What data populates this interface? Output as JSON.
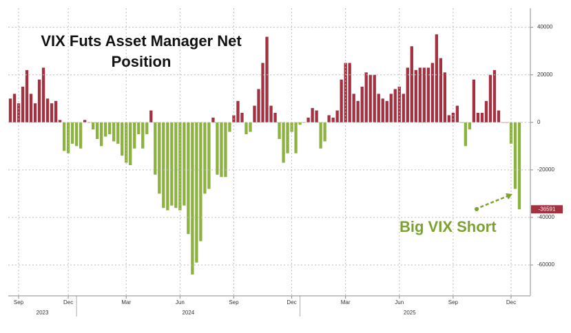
{
  "chart_data": {
    "type": "bar",
    "title": "VIX Futs Asset Manager Net Position",
    "annotation": "Big VIX Short",
    "categories": [
      null,
      null,
      "Sep",
      null,
      null,
      null,
      null,
      null,
      null,
      null,
      null,
      null,
      null,
      null,
      "Dec",
      null,
      null,
      null,
      null,
      null,
      null,
      null,
      null,
      null,
      null,
      null,
      null,
      null,
      "Mar",
      null,
      null,
      null,
      null,
      null,
      null,
      null,
      null,
      null,
      null,
      null,
      null,
      "Jun",
      null,
      null,
      null,
      null,
      null,
      null,
      null,
      null,
      null,
      null,
      null,
      null,
      "Sep",
      null,
      null,
      null,
      null,
      null,
      null,
      null,
      null,
      null,
      null,
      null,
      null,
      null,
      "Dec",
      null,
      null,
      null,
      null,
      null,
      null,
      null,
      null,
      null,
      null,
      null,
      null,
      "Mar",
      null,
      null,
      null,
      null,
      null,
      null,
      null,
      null,
      null,
      null,
      null,
      null,
      "Jun",
      null,
      null,
      null,
      null,
      null,
      null,
      null,
      null,
      null,
      null,
      null,
      null,
      "Sep",
      null,
      null,
      null,
      null,
      null,
      null,
      null,
      null,
      null,
      null,
      null,
      null,
      null,
      "Dec",
      null,
      null
    ],
    "years": [
      "2023",
      "2024",
      "2025"
    ],
    "values": [
      10000,
      12000,
      8000,
      15000,
      22000,
      12000,
      8000,
      18000,
      23000,
      10000,
      8000,
      9000,
      1000,
      -12000,
      -13000,
      -9000,
      -10000,
      -11000,
      1000,
      0,
      -3000,
      -7000,
      -10000,
      -6000,
      -5000,
      -8000,
      -9000,
      -14000,
      -17000,
      -18000,
      -11000,
      -5000,
      -11000,
      -5000,
      5000,
      -22000,
      -30000,
      -36000,
      -37000,
      -35000,
      -36000,
      -37000,
      -35000,
      -47000,
      -64000,
      -59000,
      -50000,
      -30000,
      -28000,
      2000,
      -22000,
      -23000,
      -23000,
      -4000,
      3000,
      9000,
      4000,
      -5000,
      -4000,
      7000,
      14000,
      25000,
      36000,
      7000,
      4000,
      -7000,
      -17000,
      -13000,
      -4000,
      -13000,
      -1000,
      0,
      2000,
      6000,
      5000,
      -11000,
      -8000,
      3000,
      2000,
      5000,
      18000,
      25000,
      25000,
      12000,
      9000,
      15000,
      21000,
      20000,
      20000,
      12000,
      10000,
      9000,
      12000,
      14000,
      15000,
      12000,
      23000,
      32000,
      22000,
      23000,
      23000,
      23000,
      25000,
      37000,
      27000,
      21000,
      3000,
      4000,
      7000,
      0,
      -10000,
      -3000,
      18000,
      4000,
      4000,
      9000,
      20000,
      22000,
      5000,
      0,
      0,
      -9000,
      -28000,
      -36591
    ],
    "positive_color": "#a5303f",
    "negative_color": "#8cb33b",
    "ylim": [
      -73000,
      48000
    ],
    "yticks": [
      -60000,
      -40000,
      -20000,
      0,
      20000,
      40000
    ],
    "grid": true,
    "y_axis_side": "right"
  }
}
